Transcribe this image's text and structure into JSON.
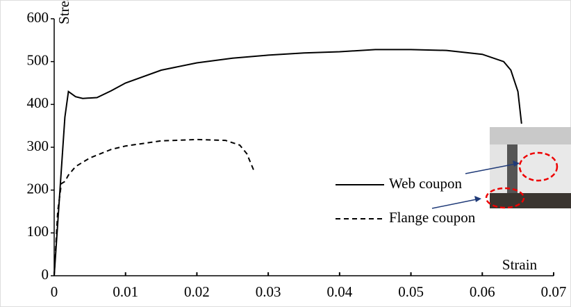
{
  "chart_data": {
    "type": "line",
    "xlabel": "Strain",
    "ylabel": "Stress MPa",
    "xlim": [
      0,
      0.07
    ],
    "xticks": [
      0,
      0.01,
      0.02,
      0.03,
      0.04,
      0.05,
      0.06,
      0.07
    ],
    "ylim": [
      0,
      600
    ],
    "yticks": [
      0,
      100,
      200,
      300,
      400,
      500,
      600
    ],
    "grid": false,
    "series": [
      {
        "name": "Web coupon",
        "color": "#000000",
        "linestyle": "solid",
        "x": [
          0,
          0.0015,
          0.002,
          0.003,
          0.004,
          0.006,
          0.008,
          0.01,
          0.015,
          0.02,
          0.025,
          0.03,
          0.035,
          0.04,
          0.045,
          0.05,
          0.055,
          0.06,
          0.063,
          0.064,
          0.065,
          0.0655
        ],
        "values": [
          0,
          370,
          430,
          418,
          414,
          416,
          432,
          450,
          480,
          497,
          508,
          515,
          520,
          523,
          528,
          528,
          526,
          517,
          500,
          480,
          430,
          355
        ]
      },
      {
        "name": "Flange coupon",
        "color": "#000000",
        "linestyle": "dashed",
        "x": [
          0,
          0.0005,
          0.001,
          0.0015,
          0.002,
          0.003,
          0.005,
          0.008,
          0.01,
          0.015,
          0.02,
          0.024,
          0.026,
          0.027,
          0.028
        ],
        "values": [
          0,
          150,
          215,
          220,
          235,
          255,
          275,
          295,
          303,
          315,
          318,
          316,
          305,
          285,
          245
        ]
      }
    ]
  }
}
